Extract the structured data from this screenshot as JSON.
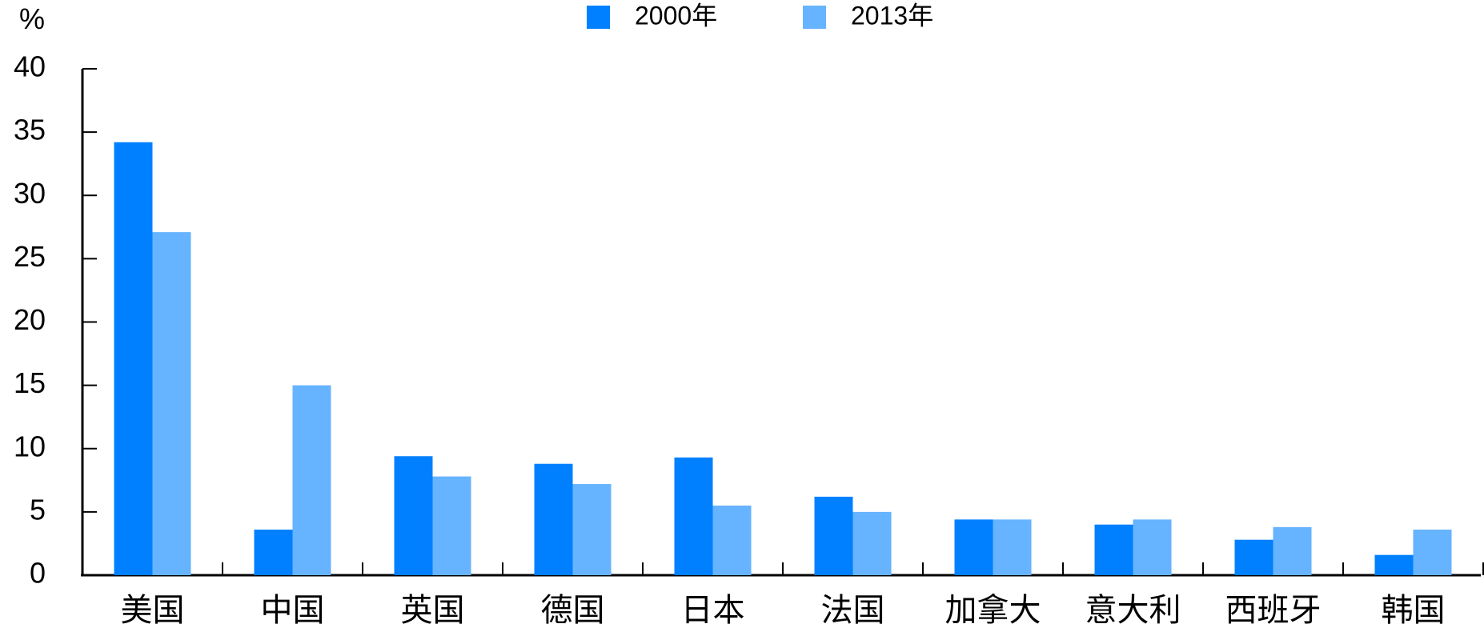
{
  "chart_data": {
    "type": "bar",
    "title": "",
    "xlabel": "",
    "ylabel": "%",
    "ylim": [
      0,
      40
    ],
    "yticks": [
      0,
      5,
      10,
      15,
      20,
      25,
      30,
      35,
      40
    ],
    "grid": false,
    "legend_position": "top-center",
    "categories": [
      "美国",
      "中国",
      "英国",
      "德国",
      "日本",
      "法国",
      "加拿大",
      "意大利",
      "西班牙",
      "韩国"
    ],
    "series": [
      {
        "name": "2000年",
        "color": "#0080FF",
        "values": [
          34.2,
          3.6,
          9.4,
          8.8,
          9.3,
          6.2,
          4.4,
          4.0,
          2.8,
          1.6
        ]
      },
      {
        "name": "2013年",
        "color": "#66B3FF",
        "values": [
          27.1,
          15.0,
          7.8,
          7.2,
          5.5,
          5.0,
          4.4,
          4.4,
          3.8,
          3.6
        ]
      }
    ]
  }
}
